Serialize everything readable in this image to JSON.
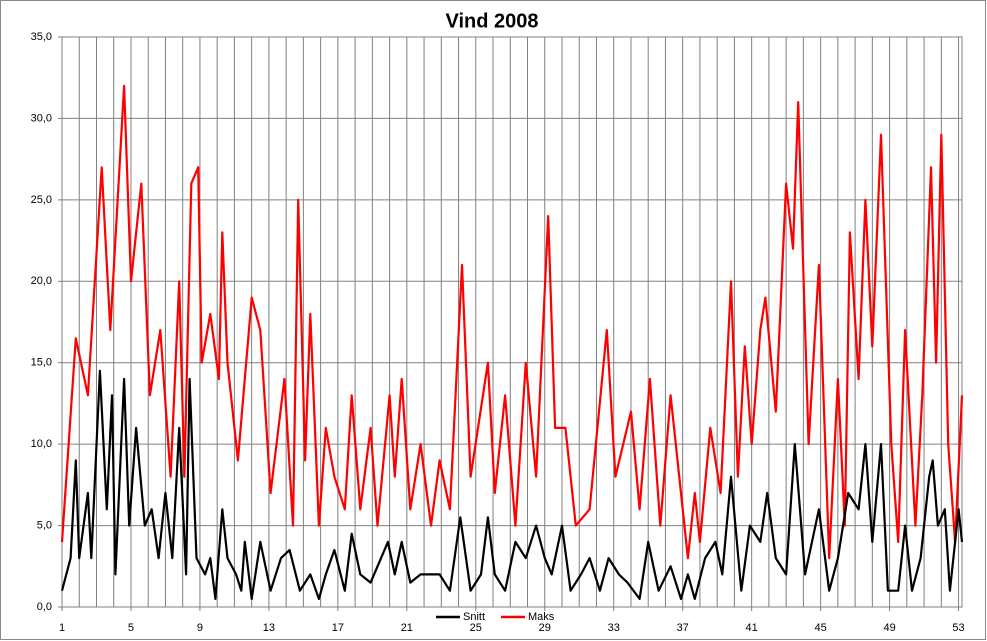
{
  "chart_data": {
    "type": "line",
    "title": "Vind 2008",
    "xlim": [
      1,
      53.2
    ],
    "ylim": [
      0,
      35
    ],
    "xticks": [
      1,
      5,
      9,
      13,
      17,
      21,
      25,
      29,
      33,
      37,
      41,
      45,
      49,
      53
    ],
    "xgrid": [
      1,
      2,
      3,
      4,
      5,
      6,
      7,
      8,
      9,
      10,
      11,
      12,
      13,
      14,
      15,
      16,
      17,
      18,
      19,
      20,
      21,
      22,
      23,
      24,
      25,
      26,
      27,
      28,
      29,
      30,
      31,
      32,
      33,
      34,
      35,
      36,
      37,
      38,
      39,
      40,
      41,
      42,
      43,
      44,
      45,
      46,
      47,
      48,
      49,
      50,
      51,
      52,
      53
    ],
    "yticks": [
      {
        "value": 0,
        "label": "0,0"
      },
      {
        "value": 5,
        "label": "5,0"
      },
      {
        "value": 10,
        "label": "10,0"
      },
      {
        "value": 15,
        "label": "15,0"
      },
      {
        "value": 20,
        "label": "20,0"
      },
      {
        "value": 25,
        "label": "25,0"
      },
      {
        "value": 30,
        "label": "30,0"
      },
      {
        "value": 35,
        "label": "35,0"
      }
    ],
    "grid": true,
    "series": [
      {
        "name": "Snitt",
        "color": "#000000",
        "x": [
          1.0,
          1.5,
          1.8,
          2.0,
          2.5,
          2.7,
          3.2,
          3.6,
          3.9,
          4.1,
          4.6,
          4.9,
          5.3,
          5.8,
          6.2,
          6.6,
          7.0,
          7.4,
          7.8,
          8.2,
          8.4,
          8.8,
          9.3,
          9.6,
          9.9,
          10.3,
          10.6,
          11.1,
          11.4,
          11.6,
          12.0,
          12.5,
          13.1,
          13.7,
          14.2,
          14.8,
          15.4,
          15.9,
          16.3,
          16.8,
          17.4,
          17.8,
          18.3,
          18.9,
          19.9,
          20.3,
          20.7,
          21.2,
          21.8,
          22.4,
          22.9,
          23.5,
          24.1,
          24.7,
          25.3,
          25.7,
          26.1,
          26.7,
          27.3,
          27.9,
          28.5,
          29.0,
          29.4,
          30.0,
          30.5,
          31.1,
          31.6,
          32.2,
          32.7,
          33.3,
          33.8,
          34.5,
          35.0,
          35.6,
          36.3,
          36.9,
          37.3,
          37.7,
          38.3,
          38.9,
          39.3,
          39.8,
          40.4,
          40.9,
          41.5,
          41.9,
          42.4,
          43.0,
          43.5,
          44.1,
          44.9,
          45.5,
          46.0,
          46.6,
          47.2,
          47.6,
          48.0,
          48.5,
          48.9,
          49.5,
          49.9,
          50.3,
          50.8,
          51.3,
          51.5,
          51.8,
          52.2,
          52.5,
          53.0,
          53.2
        ],
        "values": [
          1,
          3,
          9,
          3,
          7,
          3,
          14.5,
          6,
          13,
          2,
          14,
          5,
          11,
          5,
          6,
          3,
          7,
          3,
          11,
          2,
          14,
          3,
          2,
          3,
          0.5,
          6,
          3,
          2,
          1,
          4,
          0.5,
          4,
          1,
          3,
          3.5,
          1,
          2,
          0.5,
          2,
          3.5,
          1,
          4.5,
          2,
          1.5,
          4,
          2,
          4,
          1.5,
          2,
          2,
          2,
          1,
          5.5,
          1,
          2,
          5.5,
          2,
          1,
          4,
          3,
          5,
          3,
          2,
          5,
          1,
          2,
          3,
          1,
          3,
          2,
          1.5,
          0.5,
          4,
          1,
          2.5,
          0.5,
          2,
          0.5,
          3,
          4,
          2,
          8,
          1,
          5,
          4,
          7,
          3,
          2,
          10,
          2,
          6,
          1,
          3,
          7,
          6,
          10,
          4,
          10,
          1,
          1,
          5,
          1,
          3,
          8,
          9,
          5,
          6,
          1,
          6,
          4
        ]
      },
      {
        "name": "Maks",
        "color": "#ff0000",
        "x": [
          1.0,
          1.8,
          2.5,
          3.3,
          3.8,
          4.6,
          5.0,
          5.6,
          6.1,
          6.7,
          7.3,
          7.8,
          8.1,
          8.5,
          8.9,
          9.1,
          9.6,
          10.1,
          10.3,
          10.6,
          11.2,
          12.0,
          12.5,
          13.1,
          13.9,
          14.4,
          14.7,
          15.1,
          15.4,
          15.9,
          16.3,
          16.8,
          17.4,
          17.8,
          18.3,
          18.9,
          19.3,
          20.0,
          20.3,
          20.7,
          21.2,
          21.8,
          22.4,
          22.9,
          23.5,
          24.2,
          24.7,
          25.7,
          26.1,
          26.7,
          27.3,
          27.9,
          28.5,
          29.2,
          29.6,
          30.2,
          30.8,
          31.6,
          32.6,
          33.1,
          34.0,
          34.5,
          35.1,
          35.7,
          36.3,
          37.3,
          37.7,
          38.0,
          38.6,
          39.2,
          39.8,
          40.2,
          40.6,
          41.0,
          41.5,
          41.8,
          42.4,
          43.0,
          43.4,
          43.7,
          44.3,
          44.9,
          45.5,
          46.0,
          46.4,
          46.7,
          47.2,
          47.6,
          48.0,
          48.5,
          49.1,
          49.5,
          49.9,
          50.5,
          50.9,
          51.4,
          51.7,
          52.0,
          52.4,
          52.8,
          53.2
        ],
        "values": [
          4,
          16.5,
          13,
          27,
          17,
          32,
          20,
          26,
          13,
          17,
          8,
          20,
          8,
          26,
          27,
          15,
          18,
          14,
          23,
          15,
          9,
          19,
          17,
          7,
          14,
          5,
          25,
          9,
          18,
          5,
          11,
          8,
          6,
          13,
          6,
          11,
          5,
          13,
          8,
          14,
          6,
          10,
          5,
          9,
          6,
          21,
          8,
          15,
          7,
          13,
          5,
          15,
          8,
          24,
          11,
          11,
          5,
          6,
          17,
          8,
          12,
          6,
          14,
          5,
          13,
          3,
          7,
          4,
          11,
          7,
          20,
          8,
          16,
          10,
          17,
          19,
          12,
          26,
          22,
          31,
          10,
          21,
          3,
          14,
          5,
          23,
          14,
          25,
          16,
          29,
          10,
          4,
          17,
          5,
          13,
          27,
          15,
          29,
          10,
          4,
          13
        ]
      }
    ]
  }
}
